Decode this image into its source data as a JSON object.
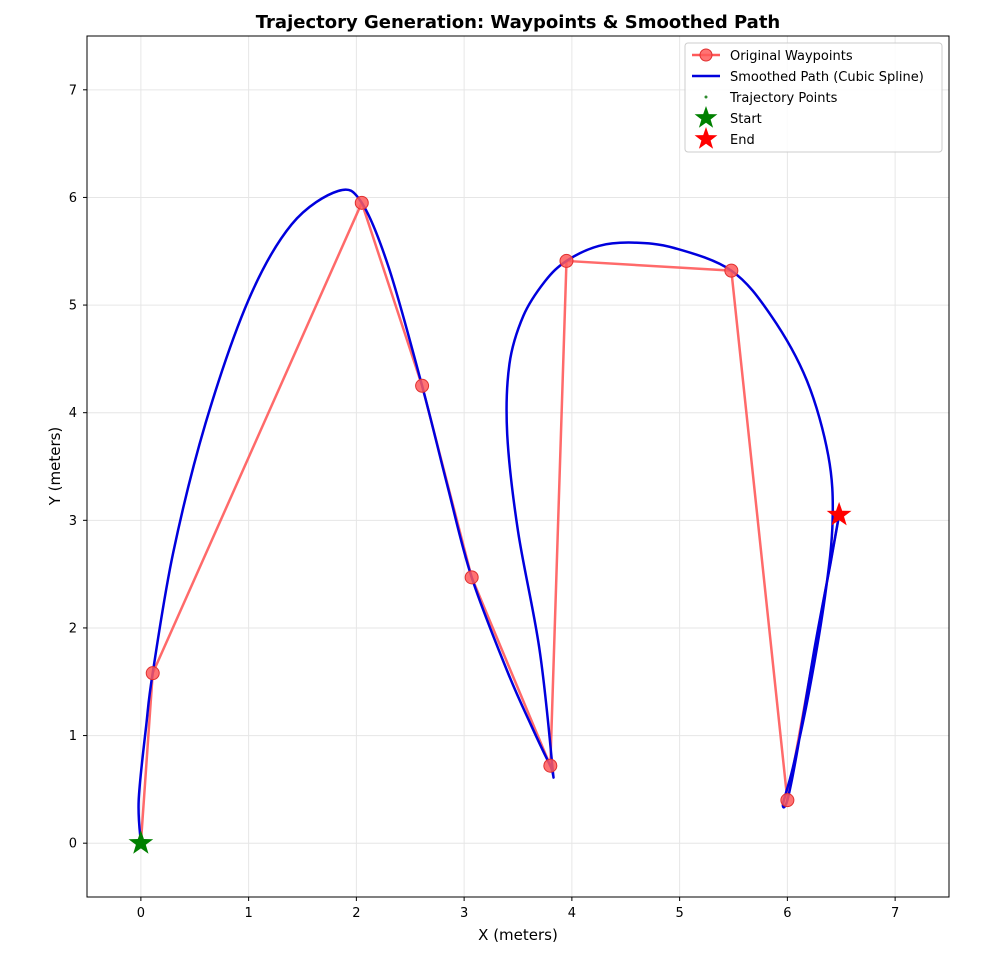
{
  "chart_data": {
    "type": "line",
    "title": "Trajectory Generation: Waypoints & Smoothed Path",
    "xlabel": "X (meters)",
    "ylabel": "Y (meters)",
    "xlim": [
      -0.5,
      7.5
    ],
    "ylim": [
      -0.5,
      7.5
    ],
    "xticks": [
      "0",
      "1",
      "2",
      "3",
      "4",
      "5",
      "6",
      "7"
    ],
    "yticks": [
      "0",
      "1",
      "2",
      "3",
      "4",
      "5",
      "6",
      "7"
    ],
    "grid": true,
    "legend_position": "top-right",
    "series": [
      {
        "name": "Original Waypoints",
        "kind": "line-markers",
        "color": "#ff5a5a",
        "x": [
          0.0,
          0.11,
          2.05,
          2.61,
          3.07,
          3.8,
          3.95,
          5.48,
          6.0,
          6.48
        ],
        "y": [
          0.0,
          1.58,
          5.95,
          4.25,
          2.47,
          0.72,
          5.41,
          5.32,
          0.4,
          3.05
        ]
      },
      {
        "name": "Smoothed Path (Cubic Spline)",
        "kind": "line",
        "color": "#0000dd",
        "x": [
          0.0,
          -0.02,
          0.05,
          0.11,
          0.3,
          0.6,
          1.0,
          1.4,
          1.83,
          2.05,
          2.3,
          2.61,
          2.85,
          3.07,
          3.4,
          3.62,
          3.8,
          3.82,
          3.7,
          3.5,
          3.4,
          3.42,
          3.55,
          3.75,
          3.95,
          4.25,
          4.57,
          4.95,
          5.48,
          5.85,
          6.18,
          6.38,
          6.42,
          6.35,
          6.2,
          6.05,
          5.96,
          6.0,
          6.1,
          6.25,
          6.4,
          6.48
        ],
        "y": [
          0.0,
          0.4,
          1.1,
          1.58,
          2.7,
          3.9,
          5.05,
          5.75,
          6.06,
          5.95,
          5.35,
          4.25,
          3.3,
          2.47,
          1.6,
          1.1,
          0.72,
          0.7,
          1.8,
          2.9,
          3.8,
          4.45,
          4.9,
          5.22,
          5.41,
          5.55,
          5.58,
          5.53,
          5.32,
          4.9,
          4.3,
          3.6,
          3.0,
          2.3,
          1.4,
          0.7,
          0.37,
          0.4,
          0.9,
          1.8,
          2.6,
          3.05
        ]
      },
      {
        "name": "Trajectory Points",
        "kind": "scatter",
        "color": "#2e8b2e"
      },
      {
        "name": "Start",
        "kind": "star",
        "color": "#008000",
        "x": [
          0.0
        ],
        "y": [
          0.0
        ]
      },
      {
        "name": "End",
        "kind": "star",
        "color": "#ff0000",
        "x": [
          6.48
        ],
        "y": [
          3.05
        ]
      }
    ]
  }
}
